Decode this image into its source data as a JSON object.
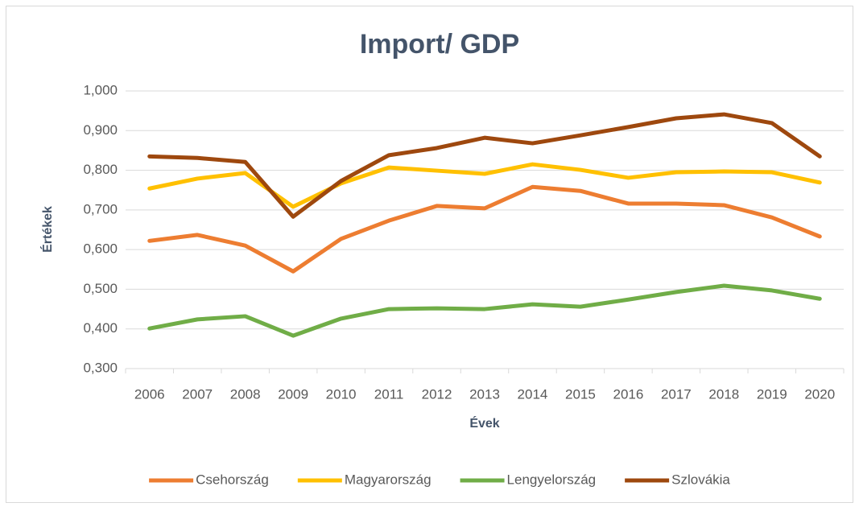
{
  "chart_data": {
    "type": "line",
    "title": "Import/ GDP",
    "x_label": "Évek",
    "y_label": "Értékek",
    "categories": [
      "2006",
      "2007",
      "2008",
      "2009",
      "2010",
      "2011",
      "2012",
      "2013",
      "2014",
      "2015",
      "2016",
      "2017",
      "2018",
      "2019",
      "2020"
    ],
    "series": [
      {
        "name": "Csehország",
        "color": "#ed7d31",
        "values": [
          0.622,
          0.637,
          0.61,
          0.545,
          0.627,
          0.673,
          0.71,
          0.704,
          0.758,
          0.748,
          0.716,
          0.716,
          0.712,
          0.681,
          0.633
        ]
      },
      {
        "name": "Magyarország",
        "color": "#ffc000",
        "values": [
          0.754,
          0.779,
          0.793,
          0.708,
          0.767,
          0.807,
          0.799,
          0.791,
          0.815,
          0.801,
          0.781,
          0.795,
          0.797,
          0.795,
          0.769
        ]
      },
      {
        "name": "Lengyelország",
        "color": "#70ad47",
        "values": [
          0.401,
          0.424,
          0.432,
          0.383,
          0.426,
          0.45,
          0.452,
          0.45,
          0.462,
          0.456,
          0.474,
          0.493,
          0.509,
          0.497,
          0.476
        ]
      },
      {
        "name": "Szlovákia",
        "color": "#9e480e",
        "values": [
          0.835,
          0.831,
          0.821,
          0.683,
          0.773,
          0.838,
          0.856,
          0.882,
          0.868,
          0.888,
          0.909,
          0.931,
          0.941,
          0.919,
          0.835
        ]
      }
    ],
    "ylim": [
      0.3,
      1.0
    ],
    "yticks": [
      {
        "value": 0.3,
        "label": "0,300"
      },
      {
        "value": 0.4,
        "label": "0,400"
      },
      {
        "value": 0.5,
        "label": "0,500"
      },
      {
        "value": 0.6,
        "label": "0,600"
      },
      {
        "value": 0.7,
        "label": "0,700"
      },
      {
        "value": 0.8,
        "label": "0,800"
      },
      {
        "value": 0.9,
        "label": "0,900"
      },
      {
        "value": 1.0,
        "label": "1,000"
      }
    ],
    "grid": true,
    "legend": "bottom"
  }
}
